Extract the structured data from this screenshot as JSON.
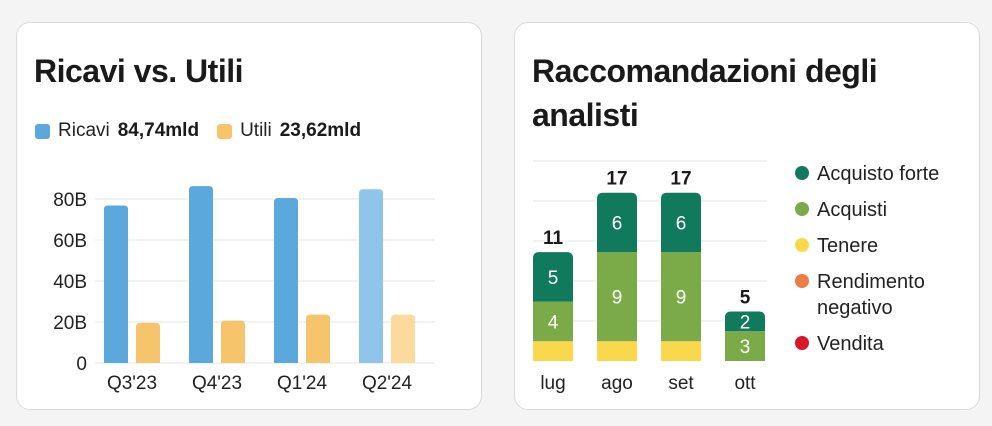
{
  "revenue_card": {
    "title": "Ricavi vs. Utili",
    "legend": [
      {
        "label": "Ricavi",
        "value": "84,74mld",
        "color": "#5ba8dc"
      },
      {
        "label": "Utili",
        "value": "23,62mld",
        "color": "#f6c46b"
      }
    ]
  },
  "analyst_card": {
    "title": "Raccomandazioni degli analisti",
    "legend": [
      {
        "label": "Acquisto forte",
        "color": "#117a5d"
      },
      {
        "label": "Acquisti",
        "color": "#7aab48"
      },
      {
        "label": "Tenere",
        "color": "#fad84b"
      },
      {
        "label": "Rendimento negativo",
        "color": "#ee7a45"
      },
      {
        "label": "Vendita",
        "color": "#d9152a"
      }
    ]
  },
  "chart_data": [
    {
      "type": "bar",
      "title": "Ricavi vs. Utili",
      "categories": [
        "Q3'23",
        "Q4'23",
        "Q1'24",
        "Q2'24"
      ],
      "series": [
        {
          "name": "Ricavi",
          "values": [
            76.8,
            86.3,
            80.5,
            84.74
          ],
          "color": "#5ba8dc",
          "last_color": "#8fc5ea"
        },
        {
          "name": "Utili",
          "values": [
            19.6,
            20.7,
            23.6,
            23.62
          ],
          "color": "#f6c46b",
          "last_color": "#fcda9d"
        }
      ],
      "y_ticks": [
        0,
        20,
        40,
        60,
        80
      ],
      "y_tick_labels": [
        "0",
        "20B",
        "40B",
        "60B",
        "80B"
      ],
      "ylim": [
        0,
        90
      ],
      "grid": true
    },
    {
      "type": "bar",
      "stacked": true,
      "title": "Raccomandazioni degli analisti",
      "categories": [
        "lug",
        "ago",
        "set",
        "ott"
      ],
      "totals": [
        11,
        17,
        17,
        5
      ],
      "series": [
        {
          "name": "Tenere",
          "values": [
            2,
            2,
            2,
            0
          ],
          "color": "#fad84b"
        },
        {
          "name": "Acquisti",
          "values": [
            4,
            9,
            9,
            3
          ],
          "color": "#7aab48"
        },
        {
          "name": "Acquisto forte",
          "values": [
            5,
            6,
            6,
            2
          ],
          "color": "#117a5d"
        }
      ],
      "grid": true
    }
  ]
}
